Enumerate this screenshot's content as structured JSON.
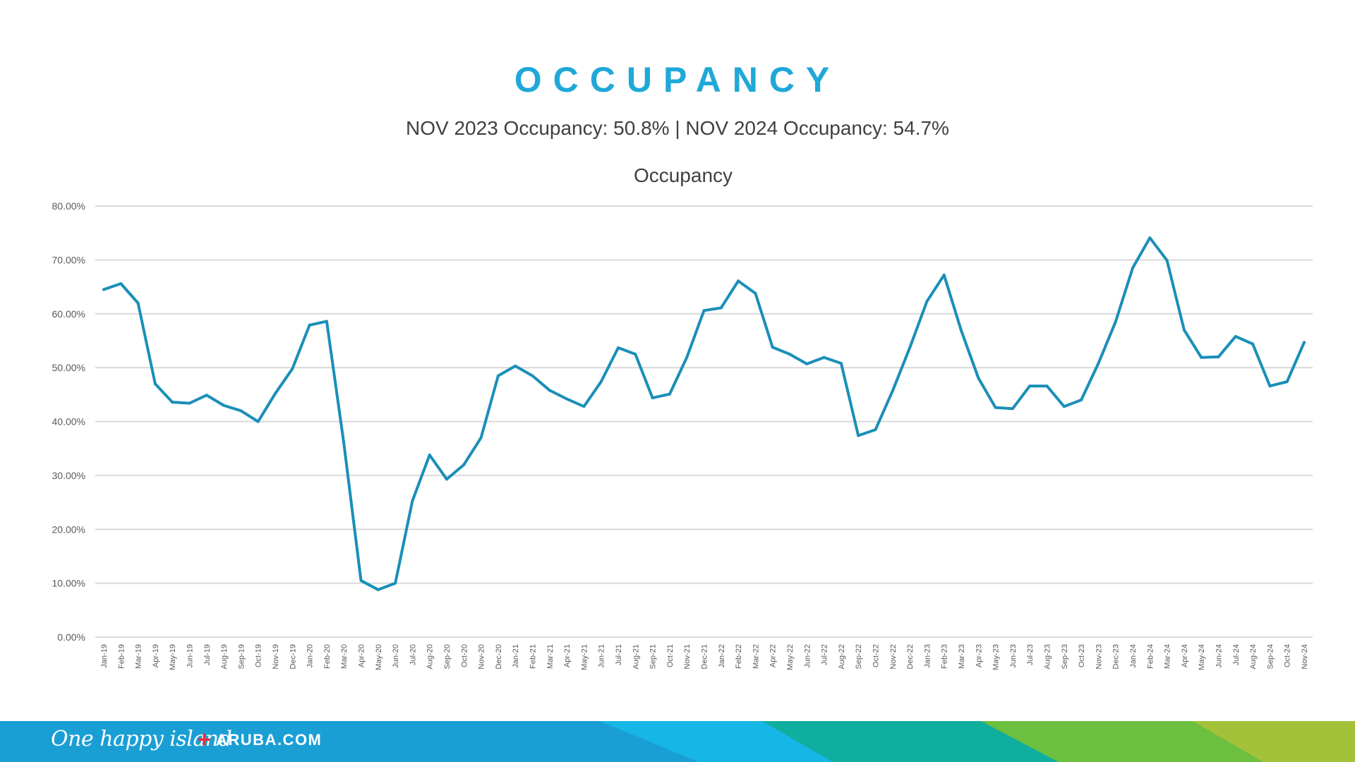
{
  "slide": {
    "title": "OCCUPANCY",
    "subtitle": "NOV 2023 Occupancy: 50.8% | NOV 2024 Occupancy: 54.7%"
  },
  "footer": {
    "tagline": "One happy island",
    "plus": "+",
    "site": "ARUBA.COM"
  },
  "colors": {
    "title": "#1fa8d8",
    "line": "#1a8fb8",
    "grid": "#d9d9d9",
    "footer_blue": "#1a9fd4",
    "footer_cyan": "#16b6e6",
    "footer_teal": "#0fae9f",
    "footer_green": "#6cbf3f",
    "footer_lime": "#a3c23a"
  },
  "chart_data": {
    "type": "line",
    "title": "Occupancy",
    "xlabel": "",
    "ylabel": "",
    "ylim": [
      0,
      80
    ],
    "y_ticks": [
      "0.00%",
      "10.00%",
      "20.00%",
      "30.00%",
      "40.00%",
      "50.00%",
      "60.00%",
      "70.00%",
      "80.00%"
    ],
    "grid": true,
    "legend": "none",
    "categories": [
      "Jan-19",
      "Feb-19",
      "Mar-19",
      "Apr-19",
      "May-19",
      "Jun-19",
      "Jul-19",
      "Aug-19",
      "Sep-19",
      "Oct-19",
      "Nov-19",
      "Dec-19",
      "Jan-20",
      "Feb-20",
      "Mar-20",
      "Apr-20",
      "May-20",
      "Jun-20",
      "Jul-20",
      "Aug-20",
      "Sep-20",
      "Oct-20",
      "Nov-20",
      "Dec-20",
      "Jan-21",
      "Feb-21",
      "Mar-21",
      "Apr-21",
      "May-21",
      "Jun-21",
      "Jul-21",
      "Aug-21",
      "Sep-21",
      "Oct-21",
      "Nov-21",
      "Dec-21",
      "Jan-22",
      "Feb-22",
      "Mar-22",
      "Apr-22",
      "May-22",
      "Jun-22",
      "Jul-22",
      "Aug-22",
      "Sep-22",
      "Oct-22",
      "Nov-22",
      "Dec-22",
      "Jan-23",
      "Feb-23",
      "Mar-23",
      "Apr-23",
      "May-23",
      "Jun-23",
      "Jul-23",
      "Aug-23",
      "Sep-23",
      "Oct-23",
      "Nov-23",
      "Dec-23",
      "Jan-24",
      "Feb-24",
      "Mar-24",
      "Apr-24",
      "May-24",
      "Jun-24",
      "Jul-24",
      "Aug-24",
      "Sep-24",
      "Oct-24",
      "Nov-24"
    ],
    "series": [
      {
        "values": [
          64.5,
          65.6,
          62.0,
          47.0,
          43.6,
          43.4,
          44.9,
          43.0,
          42.0,
          40.0,
          45.2,
          49.8,
          57.9,
          58.6,
          36.0,
          10.5,
          8.8,
          10.0,
          25.3,
          33.8,
          29.3,
          32.0,
          37.0,
          48.5,
          50.3,
          48.5,
          45.8,
          44.2,
          42.8,
          47.4,
          53.7,
          52.5,
          44.4,
          45.1,
          51.9,
          60.6,
          61.1,
          66.1,
          63.8,
          53.8,
          52.5,
          50.7,
          51.9,
          50.8,
          37.4,
          38.5,
          45.7,
          53.7,
          62.3,
          67.2,
          56.9,
          48.1,
          42.6,
          42.4,
          46.6,
          46.6,
          42.8,
          44.0,
          50.8,
          58.5,
          68.5,
          74.1,
          69.9,
          57.0,
          51.9,
          52.0,
          55.8,
          54.4,
          46.6,
          47.4,
          54.7
        ]
      }
    ]
  }
}
